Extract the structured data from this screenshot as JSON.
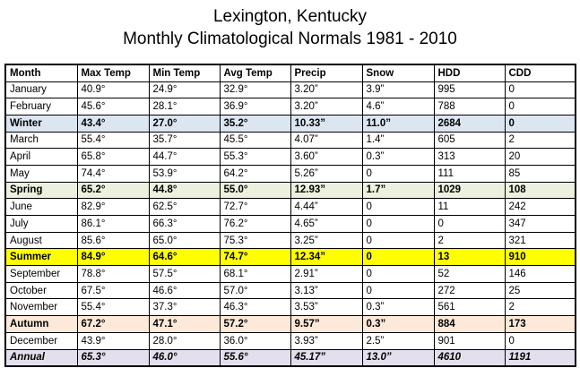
{
  "title": "Lexington, Kentucky",
  "subtitle": "Monthly Climatological Normals 1981 - 2010",
  "columns": [
    "Month",
    "Max Temp",
    "Min Temp",
    "Avg Temp",
    "Precip",
    "Snow",
    "HDD",
    "CDD"
  ],
  "rows": [
    {
      "kind": "month",
      "cells": [
        "January",
        "40.9°",
        "24.9°",
        "32.9°",
        "3.20”",
        "3.9”",
        "995",
        "0"
      ]
    },
    {
      "kind": "month",
      "cells": [
        "February",
        "45.6°",
        "28.1°",
        "36.9°",
        "3.20”",
        "4.6”",
        "788",
        "0"
      ]
    },
    {
      "kind": "season",
      "bg": "#dce6f1",
      "cells": [
        "Winter",
        "43.4°",
        "27.0°",
        "35.2°",
        "10.33”",
        "11.0”",
        "2684",
        "0"
      ]
    },
    {
      "kind": "month",
      "cells": [
        "March",
        "55.4°",
        "35.7°",
        "45.5°",
        "4.07”",
        "1.4”",
        "605",
        "2"
      ]
    },
    {
      "kind": "month",
      "cells": [
        "April",
        "65.8°",
        "44.7°",
        "55.3°",
        "3.60”",
        "0.3”",
        "313",
        "20"
      ]
    },
    {
      "kind": "month",
      "cells": [
        "May",
        "74.4°",
        "53.9°",
        "64.2°",
        "5.26”",
        "0",
        "111",
        "85"
      ]
    },
    {
      "kind": "season",
      "bg": "#ebf1de",
      "cells": [
        "Spring",
        "65.2°",
        "44.8°",
        "55.0°",
        "12.93”",
        "1.7”",
        "1029",
        "108"
      ]
    },
    {
      "kind": "month",
      "cells": [
        "June",
        "82.9°",
        "62.5°",
        "72.7°",
        "4.44”",
        "0",
        "11",
        "242"
      ]
    },
    {
      "kind": "month",
      "cells": [
        "July",
        "86.1°",
        "66.3°",
        "76.2°",
        "4.65”",
        "0",
        "0",
        "347"
      ]
    },
    {
      "kind": "month",
      "cells": [
        "August",
        "85.6°",
        "65.0°",
        "75.3°",
        "3.25”",
        "0",
        "2",
        "321"
      ]
    },
    {
      "kind": "season",
      "bg": "#ffff00",
      "cells": [
        "Summer",
        "84.9°",
        "64.6°",
        "74.7°",
        "12.34”",
        "0",
        "13",
        "910"
      ]
    },
    {
      "kind": "month",
      "cells": [
        "September",
        "78.8°",
        "57.5°",
        "68.1°",
        "2.91”",
        "0",
        "52",
        "146"
      ]
    },
    {
      "kind": "month",
      "cells": [
        "October",
        "67.5°",
        "46.6°",
        "57.0°",
        "3.13”",
        "0",
        "272",
        "25"
      ]
    },
    {
      "kind": "month",
      "cells": [
        "November",
        "55.4°",
        "37.3°",
        "46.3°",
        "3.53”",
        "0.3”",
        "561",
        "2"
      ]
    },
    {
      "kind": "season",
      "bg": "#fde9d9",
      "cells": [
        "Autumn",
        "67.2°",
        "47.1°",
        "57.2°",
        "9.57”",
        "0.3”",
        "884",
        "173"
      ]
    },
    {
      "kind": "month",
      "cells": [
        "December",
        "43.9°",
        "28.0°",
        "36.0°",
        "3.93”",
        "2.5”",
        "901",
        "0"
      ]
    },
    {
      "kind": "annual",
      "bg": "#e4dfec",
      "cells": [
        "Annual",
        "65.3°",
        "46.0°",
        "55.6°",
        "45.17”",
        "13.0”",
        "4610",
        "1191"
      ]
    }
  ]
}
